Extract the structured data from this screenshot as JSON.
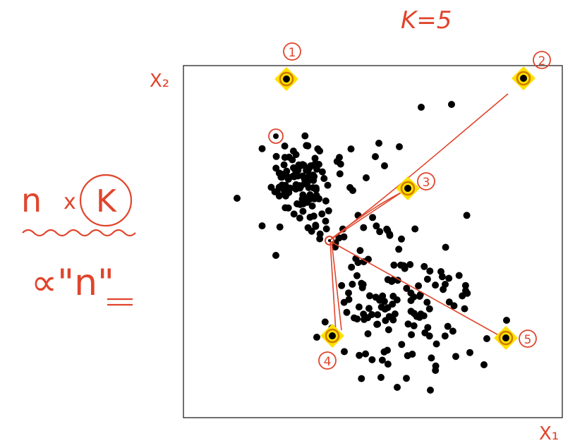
{
  "title": "K=5",
  "axes": {
    "x_label": "X₁",
    "y_label": "X₂"
  },
  "formula": {
    "top_n": "n",
    "times": "x",
    "top_k": "K",
    "bottom": "∝\"n\""
  },
  "centroid_labels": [
    "1",
    "2",
    "3",
    "4",
    "5"
  ],
  "query_point_label": "",
  "colors": {
    "ink_red": "#e0452c",
    "point": "#000000",
    "centroid_fill": "#ffe100",
    "centroid_ring": "#d07a00",
    "frame": "#111111"
  },
  "icons": {
    "centroid": "centroid-diamond-icon",
    "query": "query-point-icon"
  }
}
